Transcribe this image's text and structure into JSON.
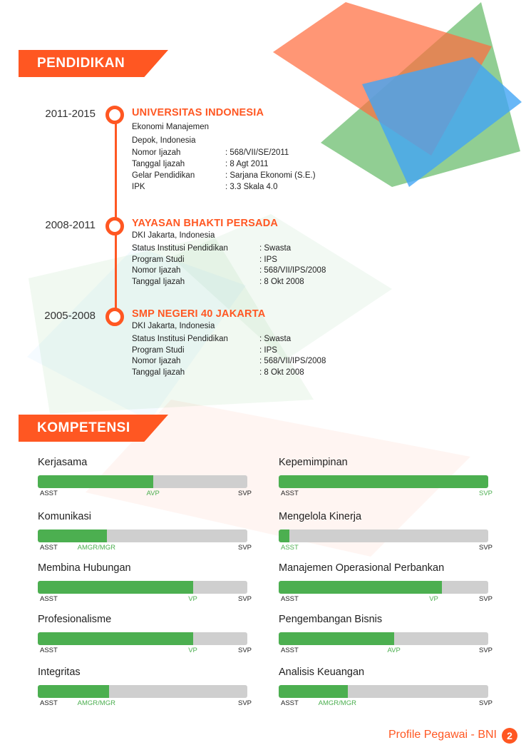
{
  "sections": {
    "education_title": "PENDIDIKAN",
    "competence_title": "KOMPETENSI"
  },
  "education": [
    {
      "years": "2011-2015",
      "institution": "UNIVERSITAS INDONESIA",
      "lines": [
        "Ekonomi Manajemen",
        "Depok, Indonesia"
      ],
      "details": [
        {
          "label": "Nomor Ijazah",
          "value": ": 568/VII/SE/2011"
        },
        {
          "label": "Tanggal Ijazah",
          "value": ": 8 Agt 2011"
        },
        {
          "label": "Gelar Pendidikan",
          "value": ": Sarjana Ekonomi (S.E.)"
        },
        {
          "label": "IPK",
          "value": ": 3.3 Skala 4.0"
        }
      ]
    },
    {
      "years": "2008-2011",
      "institution": "YAYASAN BHAKTI PERSADA",
      "lines": [
        "DKI Jakarta, Indonesia"
      ],
      "details": [
        {
          "label": "Status Institusi Pendidikan",
          "value": ": Swasta"
        },
        {
          "label": "Program Studi",
          "value": ": IPS"
        },
        {
          "label": "Nomor Ijazah",
          "value": ": 568/VII/IPS/2008"
        },
        {
          "label": "Tanggal Ijazah",
          "value": ": 8 Okt 2008"
        }
      ]
    },
    {
      "years": "2005-2008",
      "institution": "SMP NEGERI 40 JAKARTA",
      "lines": [
        "DKI Jakarta, Indonesia"
      ],
      "details": [
        {
          "label": "Status Institusi Pendidikan",
          "value": ": Swasta"
        },
        {
          "label": "Program Studi",
          "value": ": IPS"
        },
        {
          "label": "Nomor Ijazah",
          "value": ": 568/VII/IPS/2008"
        },
        {
          "label": "Tanggal Ijazah",
          "value": ": 8 Okt 2008"
        }
      ]
    }
  ],
  "scale": {
    "min_label": "ASST",
    "max_label": "SVP"
  },
  "competencies": [
    {
      "name": "Kerjasama",
      "level": "AVP",
      "fill": 0.55
    },
    {
      "name": "Kepemimpinan",
      "level": "SVP",
      "fill": 1.0
    },
    {
      "name": "Komunikasi",
      "level": "AMGR/MGR",
      "fill": 0.33
    },
    {
      "name": "Mengelola Kinerja",
      "level": "ASST",
      "fill": 0.05
    },
    {
      "name": "Membina Hubungan",
      "level": "VP",
      "fill": 0.74
    },
    {
      "name": "Manajemen Operasional Perbankan",
      "level": "VP",
      "fill": 0.78
    },
    {
      "name": "Profesionalisme",
      "level": "VP",
      "fill": 0.74
    },
    {
      "name": "Pengembangan Bisnis",
      "level": "AVP",
      "fill": 0.55
    },
    {
      "name": "Integritas",
      "level": "AMGR/MGR",
      "fill": 0.34
    },
    {
      "name": "Analisis Keuangan",
      "level": "AMGR/MGR",
      "fill": 0.33
    }
  ],
  "footer": {
    "text": "Profile Pegawai - BNI",
    "page": "2"
  },
  "colors": {
    "accent": "#ff5722",
    "bar_fill": "#4caf50",
    "bar_track": "#cfcfcf"
  }
}
